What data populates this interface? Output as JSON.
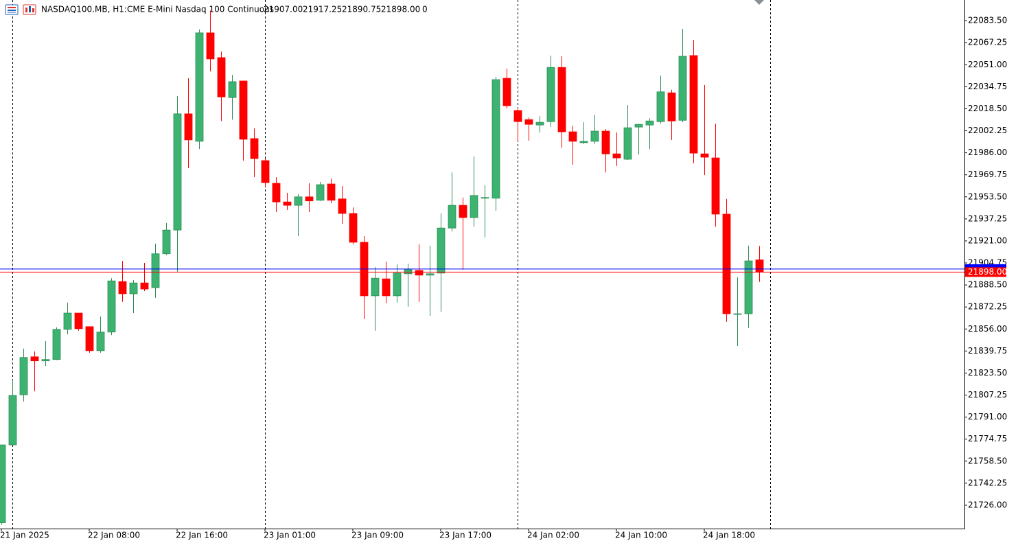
{
  "chart_data": {
    "type": "candlestick",
    "header": {
      "symbol": "NASDAQ100.MB, H1:",
      "description": "CME E-Mini Nasdaq 100 Continuous",
      "ohlc": [
        "21907.00",
        "21917.25",
        "21890.75",
        "21898.00"
      ],
      "volume": "0"
    },
    "categories": [
      "21 Jan 2025",
      null,
      null,
      null,
      null,
      null,
      null,
      null,
      "22 Jan 08:00",
      null,
      null,
      null,
      null,
      null,
      null,
      null,
      "22 Jan 16:00",
      null,
      null,
      null,
      null,
      null,
      null,
      null,
      "23 Jan 01:00",
      null,
      null,
      null,
      null,
      null,
      null,
      null,
      "23 Jan 09:00",
      null,
      null,
      null,
      null,
      null,
      null,
      null,
      "23 Jan 17:00",
      null,
      null,
      null,
      null,
      null,
      null,
      null,
      "24 Jan 02:00",
      null,
      null,
      null,
      null,
      null,
      null,
      null,
      "24 Jan 10:00",
      null,
      null,
      null,
      null,
      null,
      null,
      null,
      "24 Jan 18:00",
      null,
      null,
      null,
      null,
      null
    ],
    "open": [
      21713,
      21770.5,
      21807.5,
      21835.5,
      21832.5,
      21833.5,
      21855.75,
      21867.75,
      21857.75,
      21840,
      21853.75,
      21891,
      21882,
      21890,
      21886.5,
      21911.5,
      21929,
      22014.75,
      21994.5,
      22074.5,
      22056.25,
      22026.75,
      22039,
      21996.5,
      21980.25,
      21963.5,
      21949.75,
      21947.25,
      21953.5,
      21951,
      21963,
      21952,
      21941.25,
      21920,
      21880.5,
      21893,
      21880.5,
      21896.75,
      21899.25,
      21895.75,
      21897.25,
      21930.5,
      21947.25,
      21938.25,
      21952.75,
      21952.5,
      22041,
      22017.25,
      22010.5,
      22006.5,
      22009,
      22049,
      22001.5,
      21993.5,
      21994.5,
      22002,
      21985.25,
      21981.25,
      22005,
      22006.5,
      22009,
      22030.25,
      22010,
      22057.75,
      21985.25,
      21982.25,
      21940.75,
      21866.75,
      21867.25,
      21907
    ],
    "high": [
      21770.5,
      21818.75,
      21841.5,
      21839.5,
      21847,
      21857.25,
      21875.5,
      21867.75,
      21857.75,
      21865.25,
      21893.5,
      21906.25,
      21892,
      21904.75,
      21919,
      21934.25,
      22027.75,
      22041,
      22077,
      22091,
      22060.75,
      22043.5,
      22039,
      22004,
      21981.75,
      21968,
      21956.5,
      21955.5,
      21963.5,
      21964.5,
      21967,
      21961.5,
      21945.75,
      21924.5,
      21901.75,
      21905.75,
      21903.75,
      21904.25,
      21918.5,
      21917.5,
      21941.25,
      21971.5,
      21953,
      21983.25,
      21962,
      22042,
      22048,
      22019.25,
      22012,
      22013,
      22057.75,
      22057.25,
      22006,
      22008.5,
      22014,
      22003.5,
      22001,
      22021.25,
      22007.5,
      22011.5,
      22043,
      22032.5,
      22077.5,
      22069.25,
      22036,
      22007.5,
      21952,
      21894.25,
      21917.5,
      21917.25
    ],
    "low": [
      21711.5,
      21770.5,
      21802.5,
      21810,
      21828.75,
      21833,
      21852,
      21854.75,
      21838.5,
      21838.5,
      21851.5,
      21876,
      21867.75,
      21884,
      21879,
      21910.5,
      21898.25,
      21974.75,
      21988.75,
      22046,
      22009.5,
      22010.5,
      21980.25,
      21968,
      21961,
      21942.25,
      21943.75,
      21924.5,
      21942.25,
      21950.5,
      21948.75,
      21933.5,
      21918.5,
      21863.25,
      21854.75,
      21875,
      21875.5,
      21872.5,
      21876,
      21865.75,
      21868.75,
      21928,
      21899.75,
      21931.5,
      21923.5,
      21943.25,
      22018.75,
      21994.5,
      21995,
      22001,
      22005,
      21989.75,
      21977.25,
      21992.5,
      21992.5,
      21971.5,
      21976.25,
      21980.75,
      21984.75,
      21988.75,
      22007.5,
      21995.5,
      22008.5,
      21978.25,
      21969.5,
      21931.5,
      21861.25,
      21843.5,
      21856.75,
      21890.75
    ],
    "close": [
      21770.5,
      21807,
      21835,
      21832.5,
      21833.5,
      21855.75,
      21867.75,
      21856.25,
      21840,
      21853.75,
      21891.5,
      21882,
      21890,
      21885.5,
      21911.5,
      21929,
      22014.75,
      21995.5,
      22074.5,
      22055.25,
      22027.25,
      22038.5,
      21996,
      21981.75,
      21964,
      21949.75,
      21947.25,
      21953.5,
      21950.5,
      21962.5,
      21951,
      21941.25,
      21920,
      21880.5,
      21893.5,
      21880.5,
      21897.25,
      21899.75,
      21895.75,
      21896.75,
      21930.5,
      21947.25,
      21938.25,
      21954.5,
      21953,
      22040,
      22020.75,
      22009,
      22007,
      22008.5,
      22049,
      22001.5,
      21994.5,
      21994.5,
      22002,
      21985.25,
      21982.25,
      22004.5,
      22007,
      22009.5,
      22031,
      22009.5,
      22057.25,
      21985.75,
      21982.75,
      21940.75,
      21867.25,
      21867.25,
      21906.25,
      21898
    ],
    "up_color": "#3cb371",
    "down_color": "#ff0000",
    "ylim": [
      21708.75,
      22098.75
    ],
    "yticks": [
      {
        "value": 22083.5,
        "label": "22083.50"
      },
      {
        "value": 22067.25,
        "label": "22067.25"
      },
      {
        "value": 22051,
        "label": "22051.00"
      },
      {
        "value": 22034.75,
        "label": "22034.75"
      },
      {
        "value": 22018.5,
        "label": "22018.50"
      },
      {
        "value": 22002.25,
        "label": "22002.25"
      },
      {
        "value": 21986,
        "label": "21986.00"
      },
      {
        "value": 21969.75,
        "label": "21969.75"
      },
      {
        "value": 21953.5,
        "label": "21953.50"
      },
      {
        "value": 21937.25,
        "label": "21937.25"
      },
      {
        "value": 21921,
        "label": "21921.00"
      },
      {
        "value": 21904.75,
        "label": "21904.75"
      },
      {
        "value": 21888.5,
        "label": "21888.50"
      },
      {
        "value": 21872.25,
        "label": "21872.25"
      },
      {
        "value": 21856,
        "label": "21856.00"
      },
      {
        "value": 21839.75,
        "label": "21839.75"
      },
      {
        "value": 21823.5,
        "label": "21823.50"
      },
      {
        "value": 21807.25,
        "label": "21807.25"
      },
      {
        "value": 21791,
        "label": "21791.00"
      },
      {
        "value": 21774.75,
        "label": "21774.75"
      },
      {
        "value": 21758.5,
        "label": "21758.50"
      },
      {
        "value": 21742.25,
        "label": "21742.25"
      },
      {
        "value": 21726,
        "label": "21726.00"
      }
    ],
    "grid": false,
    "price_lines": [
      {
        "value": 21900.25,
        "color": "#0000ff"
      },
      {
        "value": 21898,
        "label": "21898.00",
        "color": "#ff0000"
      }
    ]
  }
}
